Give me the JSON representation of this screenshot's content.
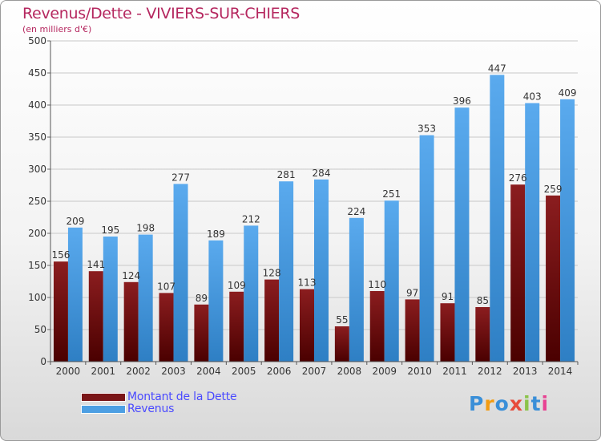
{
  "header": {
    "title": "Revenus/Dette - VIVIERS-SUR-CHIERS",
    "subtitle": "(en milliers d'€)"
  },
  "legend": {
    "dette_label": "Montant de la Dette",
    "revenus_label": "Revenus"
  },
  "logo": {
    "text": "Proxiti"
  },
  "colors": {
    "dette": "#7a1517",
    "dette_dark": "#4a0000",
    "revenus": "#4d9fe3",
    "revenus_dark": "#2e7fc4",
    "grid": "#c8c8c8",
    "axis_text": "#333333"
  },
  "chart_data": {
    "type": "bar",
    "title": "Revenus/Dette - VIVIERS-SUR-CHIERS",
    "subtitle": "(en milliers d'€)",
    "xlabel": "",
    "ylabel": "",
    "ylim": [
      0,
      500
    ],
    "yticks": [
      0,
      50,
      100,
      150,
      200,
      250,
      300,
      350,
      400,
      450,
      500
    ],
    "grid": true,
    "legend_position": "bottom-left",
    "categories": [
      "2000",
      "2001",
      "2002",
      "2003",
      "2004",
      "2005",
      "2006",
      "2007",
      "2008",
      "2009",
      "2010",
      "2011",
      "2012",
      "2013",
      "2014"
    ],
    "series": [
      {
        "name": "Montant de la Dette",
        "values": [
          156,
          141,
          124,
          107,
          89,
          109,
          128,
          113,
          55,
          110,
          97,
          91,
          85,
          276,
          259
        ]
      },
      {
        "name": "Revenus",
        "values": [
          209,
          195,
          198,
          277,
          189,
          212,
          281,
          284,
          224,
          251,
          353,
          396,
          447,
          403,
          409
        ]
      }
    ]
  }
}
